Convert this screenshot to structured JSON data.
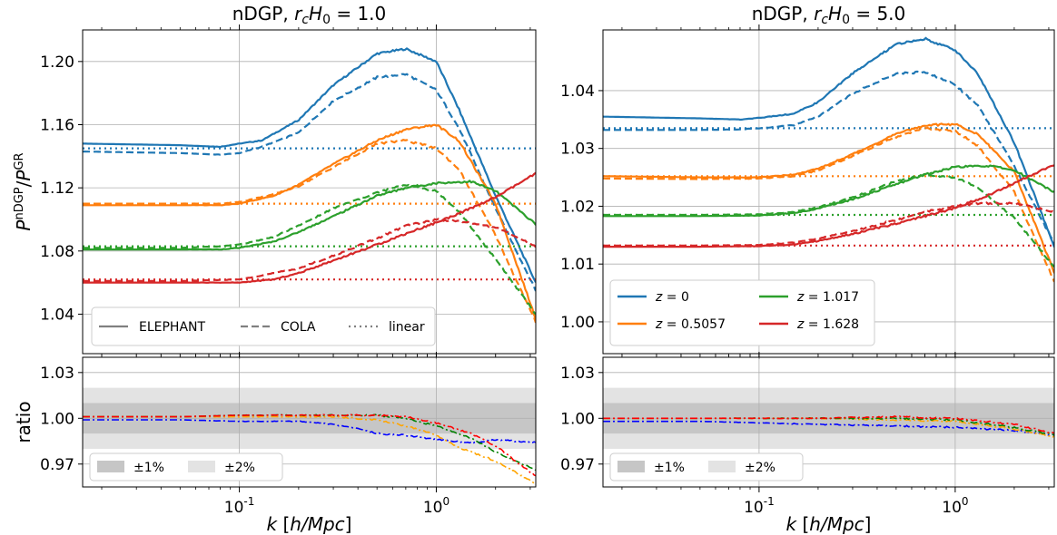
{
  "chart_data": [
    {
      "type": "line",
      "panel": "top-left",
      "title": "nDGP, ",
      "title_param": "r_cH_0 = 1.0",
      "ylabel": "P^nDGP/P^GR",
      "xscale": "log",
      "xlim": [
        0.016,
        3.2
      ],
      "ylim": [
        1.015,
        1.22
      ],
      "yticks": [
        "1.04",
        "1.08",
        "1.12",
        "1.16",
        "1.20"
      ],
      "grid": true,
      "legend": {
        "placement": "lower-left",
        "entries": [
          "ELEPHANT",
          "COLA",
          "linear"
        ]
      },
      "series": [
        {
          "color": "#1f77b4",
          "style": "solid",
          "x": [
            0.016,
            0.05,
            0.08,
            0.1,
            0.13,
            0.2,
            0.3,
            0.5,
            0.7,
            1.0,
            1.3,
            2.0,
            3.2
          ],
          "y": [
            1.148,
            1.147,
            1.146,
            1.148,
            1.15,
            1.163,
            1.185,
            1.205,
            1.208,
            1.2,
            1.17,
            1.115,
            1.06
          ]
        },
        {
          "color": "#1f77b4",
          "style": "dashed",
          "x": [
            0.016,
            0.05,
            0.08,
            0.1,
            0.13,
            0.2,
            0.3,
            0.5,
            0.7,
            1.0,
            1.3,
            2.0,
            3.2
          ],
          "y": [
            1.143,
            1.142,
            1.141,
            1.142,
            1.146,
            1.155,
            1.175,
            1.19,
            1.192,
            1.182,
            1.158,
            1.107,
            1.055
          ]
        },
        {
          "color": "#1f77b4",
          "style": "dotted",
          "x": [
            0.016,
            3.2
          ],
          "y": [
            1.145,
            1.145
          ]
        },
        {
          "color": "#ff7f0e",
          "style": "solid",
          "x": [
            0.016,
            0.05,
            0.08,
            0.1,
            0.15,
            0.2,
            0.3,
            0.5,
            0.7,
            1.0,
            1.3,
            2.0,
            3.2
          ],
          "y": [
            1.109,
            1.109,
            1.109,
            1.11,
            1.115,
            1.122,
            1.135,
            1.15,
            1.157,
            1.16,
            1.15,
            1.11,
            1.037
          ]
        },
        {
          "color": "#ff7f0e",
          "style": "dashed",
          "x": [
            0.016,
            0.05,
            0.08,
            0.1,
            0.15,
            0.2,
            0.3,
            0.5,
            0.7,
            1.0,
            1.3,
            2.0,
            3.2
          ],
          "y": [
            1.11,
            1.11,
            1.11,
            1.111,
            1.116,
            1.121,
            1.133,
            1.148,
            1.15,
            1.145,
            1.132,
            1.09,
            1.035
          ]
        },
        {
          "color": "#ff7f0e",
          "style": "dotted",
          "x": [
            0.016,
            3.2
          ],
          "y": [
            1.11,
            1.11
          ]
        },
        {
          "color": "#2ca02c",
          "style": "solid",
          "x": [
            0.016,
            0.05,
            0.08,
            0.1,
            0.15,
            0.2,
            0.3,
            0.5,
            0.7,
            1.0,
            1.5,
            2.0,
            3.2
          ],
          "y": [
            1.081,
            1.081,
            1.081,
            1.082,
            1.086,
            1.092,
            1.102,
            1.115,
            1.12,
            1.123,
            1.124,
            1.118,
            1.097
          ]
        },
        {
          "color": "#2ca02c",
          "style": "dashed",
          "x": [
            0.016,
            0.05,
            0.08,
            0.1,
            0.15,
            0.2,
            0.3,
            0.5,
            0.7,
            1.0,
            1.3,
            2.0,
            3.2
          ],
          "y": [
            1.082,
            1.082,
            1.083,
            1.084,
            1.089,
            1.096,
            1.107,
            1.117,
            1.122,
            1.118,
            1.105,
            1.075,
            1.04
          ]
        },
        {
          "color": "#2ca02c",
          "style": "dotted",
          "x": [
            0.016,
            3.2
          ],
          "y": [
            1.083,
            1.083
          ]
        },
        {
          "color": "#d62728",
          "style": "solid",
          "x": [
            0.016,
            0.05,
            0.1,
            0.15,
            0.2,
            0.3,
            0.5,
            0.7,
            1.0,
            1.5,
            2.0,
            3.2
          ],
          "y": [
            1.06,
            1.06,
            1.06,
            1.062,
            1.066,
            1.074,
            1.084,
            1.091,
            1.098,
            1.107,
            1.114,
            1.129
          ]
        },
        {
          "color": "#d62728",
          "style": "dashed",
          "x": [
            0.016,
            0.05,
            0.1,
            0.15,
            0.2,
            0.3,
            0.5,
            0.7,
            1.0,
            1.3,
            2.0,
            3.2
          ],
          "y": [
            1.061,
            1.061,
            1.062,
            1.066,
            1.069,
            1.077,
            1.088,
            1.096,
            1.1,
            1.099,
            1.095,
            1.083
          ]
        },
        {
          "color": "#d62728",
          "style": "dotted",
          "x": [
            0.016,
            3.2
          ],
          "y": [
            1.062,
            1.062
          ]
        }
      ]
    },
    {
      "type": "line",
      "panel": "top-right",
      "title": "nDGP, ",
      "title_param": "r_cH_0 = 5.0",
      "xscale": "log",
      "xlim": [
        0.016,
        3.2
      ],
      "ylim": [
        0.9945,
        1.0505
      ],
      "yticks": [
        "1.00",
        "1.01",
        "1.02",
        "1.03",
        "1.04"
      ],
      "grid": true,
      "legend": {
        "placement": "lower-left",
        "entries": [
          "z = 0",
          "z = 0.5057",
          "z = 1.017",
          "z = 1.628"
        ]
      },
      "series": [
        {
          "name": "z = 0",
          "color": "#1f77b4",
          "style": "solid",
          "x": [
            0.016,
            0.05,
            0.08,
            0.1,
            0.15,
            0.2,
            0.3,
            0.5,
            0.7,
            1.0,
            1.3,
            2.0,
            3.2
          ],
          "y": [
            1.0355,
            1.0352,
            1.035,
            1.0353,
            1.036,
            1.038,
            1.043,
            1.048,
            1.049,
            1.047,
            1.043,
            1.031,
            1.013
          ]
        },
        {
          "color": "#1f77b4",
          "style": "dashed",
          "x": [
            0.016,
            0.05,
            0.08,
            0.1,
            0.15,
            0.2,
            0.3,
            0.5,
            0.7,
            1.0,
            1.3,
            2.0,
            3.2
          ],
          "y": [
            1.0332,
            1.0332,
            1.0333,
            1.0335,
            1.034,
            1.0355,
            1.0395,
            1.043,
            1.0432,
            1.041,
            1.0375,
            1.027,
            1.0135
          ]
        },
        {
          "color": "#1f77b4",
          "style": "dotted",
          "x": [
            0.016,
            3.2
          ],
          "y": [
            1.0335,
            1.0335
          ]
        },
        {
          "name": "z = 0.5057",
          "color": "#ff7f0e",
          "style": "solid",
          "x": [
            0.016,
            0.05,
            0.1,
            0.15,
            0.2,
            0.3,
            0.5,
            0.7,
            1.0,
            1.3,
            2.0,
            3.2
          ],
          "y": [
            1.0252,
            1.025,
            1.025,
            1.0255,
            1.0265,
            1.029,
            1.0325,
            1.034,
            1.0342,
            1.0325,
            1.026,
            1.0085
          ]
        },
        {
          "color": "#ff7f0e",
          "style": "dashed",
          "x": [
            0.016,
            0.05,
            0.1,
            0.15,
            0.2,
            0.3,
            0.5,
            0.7,
            1.0,
            1.3,
            2.0,
            3.2
          ],
          "y": [
            1.0248,
            1.0247,
            1.0248,
            1.0252,
            1.0262,
            1.0287,
            1.032,
            1.0335,
            1.033,
            1.0305,
            1.0225,
            1.007
          ]
        },
        {
          "color": "#ff7f0e",
          "style": "dotted",
          "x": [
            0.016,
            3.2
          ],
          "y": [
            1.0252,
            1.0252
          ]
        },
        {
          "name": "z = 1.017",
          "color": "#2ca02c",
          "style": "solid",
          "x": [
            0.016,
            0.05,
            0.1,
            0.15,
            0.2,
            0.3,
            0.5,
            0.7,
            1.0,
            1.5,
            2.0,
            3.2
          ],
          "y": [
            1.0183,
            1.0183,
            1.0184,
            1.0188,
            1.0196,
            1.0212,
            1.0238,
            1.0255,
            1.0268,
            1.027,
            1.0262,
            1.0225
          ]
        },
        {
          "color": "#2ca02c",
          "style": "dashed",
          "x": [
            0.016,
            0.05,
            0.1,
            0.15,
            0.2,
            0.3,
            0.5,
            0.7,
            1.0,
            1.3,
            2.0,
            3.2
          ],
          "y": [
            1.0185,
            1.0185,
            1.0186,
            1.019,
            1.0198,
            1.0215,
            1.0243,
            1.0255,
            1.025,
            1.0232,
            1.018,
            1.0095
          ]
        },
        {
          "color": "#2ca02c",
          "style": "dotted",
          "x": [
            0.016,
            3.2
          ],
          "y": [
            1.0185,
            1.0185
          ]
        },
        {
          "name": "z = 1.628",
          "color": "#d62728",
          "style": "solid",
          "x": [
            0.016,
            0.05,
            0.1,
            0.15,
            0.2,
            0.3,
            0.5,
            0.7,
            1.0,
            1.5,
            2.0,
            3.2
          ],
          "y": [
            1.013,
            1.013,
            1.0131,
            1.0134,
            1.014,
            1.0152,
            1.017,
            1.0183,
            1.0197,
            1.022,
            1.024,
            1.0272
          ]
        },
        {
          "color": "#d62728",
          "style": "dashed",
          "x": [
            0.016,
            0.05,
            0.1,
            0.15,
            0.2,
            0.3,
            0.5,
            0.7,
            1.0,
            1.3,
            2.0,
            3.2
          ],
          "y": [
            1.0132,
            1.0132,
            1.0133,
            1.0137,
            1.0144,
            1.0157,
            1.0176,
            1.019,
            1.02,
            1.0205,
            1.0205,
            1.019
          ]
        },
        {
          "color": "#d62728",
          "style": "dotted",
          "x": [
            0.016,
            3.2
          ],
          "y": [
            1.0132,
            1.0132
          ]
        }
      ]
    },
    {
      "type": "line",
      "panel": "bottom-left",
      "ylabel": "ratio",
      "xlabel": "k [h/Mpc]",
      "xscale": "log",
      "xlim": [
        0.016,
        3.2
      ],
      "ylim": [
        0.955,
        1.04
      ],
      "yticks": [
        "0.97",
        "1.00",
        "1.03"
      ],
      "xticks": [
        "10^-1",
        "10^0"
      ],
      "bands": [
        {
          "label": "±1%",
          "range": [
            0.99,
            1.01
          ]
        },
        {
          "label": "±2%",
          "range": [
            0.98,
            1.02
          ]
        }
      ],
      "grid": true,
      "legend": {
        "placement": "lower-left",
        "entries": [
          "±1%",
          "±2%"
        ]
      },
      "series": [
        {
          "color": "#0000ff",
          "style": "dashdot",
          "x": [
            0.016,
            0.05,
            0.1,
            0.2,
            0.3,
            0.4,
            0.5,
            0.7,
            1.0,
            1.5,
            2.0,
            3.2
          ],
          "y": [
            0.999,
            0.999,
            0.998,
            0.998,
            0.996,
            0.993,
            0.99,
            0.989,
            0.986,
            0.984,
            0.986,
            0.984
          ]
        },
        {
          "color": "#ffa500",
          "style": "dashdot",
          "x": [
            0.016,
            0.05,
            0.1,
            0.2,
            0.3,
            0.5,
            0.7,
            1.0,
            1.3,
            2.0,
            3.2
          ],
          "y": [
            1.001,
            1.001,
            1.001,
            1.001,
            1.001,
            0.999,
            0.995,
            0.989,
            0.981,
            0.972,
            0.957
          ]
        },
        {
          "color": "#008000",
          "style": "dashdot",
          "x": [
            0.016,
            0.05,
            0.1,
            0.2,
            0.3,
            0.5,
            0.7,
            1.0,
            1.5,
            2.0,
            3.2
          ],
          "y": [
            1.001,
            1.001,
            1.002,
            1.002,
            1.002,
            1.002,
            1.0,
            0.995,
            0.987,
            0.978,
            0.966
          ]
        },
        {
          "color": "#ff0000",
          "style": "dashdot",
          "x": [
            0.016,
            0.05,
            0.1,
            0.2,
            0.3,
            0.5,
            0.7,
            1.0,
            1.5,
            2.0,
            3.2
          ],
          "y": [
            1.001,
            1.001,
            1.002,
            1.002,
            1.002,
            1.002,
            1.001,
            0.997,
            0.99,
            0.982,
            0.962
          ]
        }
      ]
    },
    {
      "type": "line",
      "panel": "bottom-right",
      "xlabel": "k [h/Mpc]",
      "xscale": "log",
      "xlim": [
        0.016,
        3.2
      ],
      "ylim": [
        0.955,
        1.04
      ],
      "yticks": [
        "0.97",
        "1.00",
        "1.03"
      ],
      "xticks": [
        "10^-1",
        "10^0"
      ],
      "bands": [
        {
          "label": "±1%",
          "range": [
            0.99,
            1.01
          ]
        },
        {
          "label": "±2%",
          "range": [
            0.98,
            1.02
          ]
        }
      ],
      "grid": true,
      "legend": {
        "placement": "lower-left",
        "entries": [
          "±1%",
          "±2%"
        ]
      },
      "series": [
        {
          "color": "#0000ff",
          "style": "dashdot",
          "x": [
            0.016,
            0.05,
            0.1,
            0.2,
            0.5,
            1.0,
            2.0,
            3.2
          ],
          "y": [
            0.998,
            0.998,
            0.997,
            0.996,
            0.995,
            0.994,
            0.992,
            0.989
          ]
        },
        {
          "color": "#ffa500",
          "style": "dashdot",
          "x": [
            0.016,
            0.05,
            0.1,
            0.2,
            0.5,
            1.0,
            2.0,
            3.2
          ],
          "y": [
            1.0,
            1.0,
            1.0,
            1.0,
            0.999,
            0.998,
            0.993,
            0.988
          ]
        },
        {
          "color": "#008000",
          "style": "dashdot",
          "x": [
            0.016,
            0.05,
            0.1,
            0.2,
            0.5,
            1.0,
            2.0,
            3.2
          ],
          "y": [
            1.0,
            1.0,
            1.0,
            1.0,
            1.0,
            0.999,
            0.994,
            0.989
          ]
        },
        {
          "color": "#ff0000",
          "style": "dashdot",
          "x": [
            0.016,
            0.05,
            0.1,
            0.2,
            0.5,
            1.0,
            2.0,
            3.2
          ],
          "y": [
            1.0,
            1.0,
            1.0,
            1.0,
            1.001,
            1.0,
            0.996,
            0.99
          ]
        }
      ]
    }
  ]
}
